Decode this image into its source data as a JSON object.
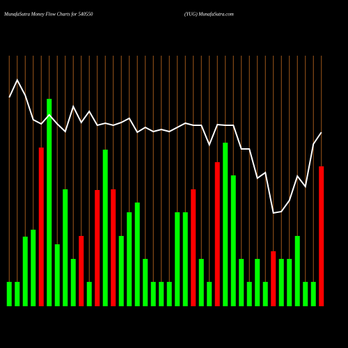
{
  "chart_data": {
    "type": "bar",
    "title": "MunafaSutra  Money Flow  Charts for 540550",
    "subtitle": "(YUG) MunafaSutra.com",
    "categories": [
      null,
      null,
      null,
      null,
      null,
      null,
      null,
      null,
      null,
      null,
      null,
      null,
      null,
      null,
      null,
      null,
      null,
      null,
      null,
      null,
      null,
      null,
      null,
      null,
      null,
      null,
      null,
      null,
      null,
      null,
      null,
      null,
      null,
      null,
      null,
      null,
      null,
      null,
      null,
      null
    ],
    "values": [
      35,
      35,
      100,
      110,
      228,
      298,
      89,
      168,
      68,
      101,
      35,
      167,
      225,
      168,
      101,
      135,
      149,
      68,
      35,
      35,
      35,
      135,
      135,
      168,
      68,
      35,
      207,
      235,
      188,
      68,
      35,
      68,
      35,
      79,
      68,
      68,
      101,
      35,
      35,
      201
    ],
    "bar_colors": [
      "#00ff00",
      "#00ff00",
      "#00ff00",
      "#00ff00",
      "#ff0000",
      "#00ff00",
      "#00ff00",
      "#00ff00",
      "#00ff00",
      "#ff0000",
      "#00ff00",
      "#ff0000",
      "#00ff00",
      "#ff0000",
      "#00ff00",
      "#00ff00",
      "#00ff00",
      "#00ff00",
      "#00ff00",
      "#00ff00",
      "#00ff00",
      "#00ff00",
      "#00ff00",
      "#ff0000",
      "#00ff00",
      "#00ff00",
      "#ff0000",
      "#00ff00",
      "#00ff00",
      "#00ff00",
      "#00ff00",
      "#00ff00",
      "#00ff00",
      "#ff0000",
      "#00ff00",
      "#00ff00",
      "#00ff00",
      "#00ff00",
      "#00ff00",
      "#ff0000"
    ],
    "line_values": [
      300,
      325,
      303,
      268,
      262,
      275,
      262,
      251,
      287,
      264,
      280,
      260,
      263,
      260,
      264,
      270,
      250,
      257,
      251,
      254,
      251,
      257,
      263,
      260,
      260,
      232,
      261,
      260,
      260,
      226,
      226,
      184,
      192,
      134,
      136,
      152,
      187,
      172,
      233,
      250
    ],
    "line_color": "#ffffff",
    "grid_color": "#a0581a",
    "ylim": [
      0,
      360
    ]
  }
}
